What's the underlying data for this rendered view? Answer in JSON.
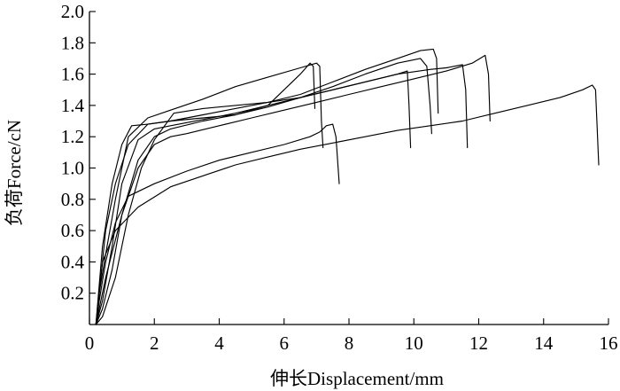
{
  "chart_data": {
    "type": "line",
    "title": "",
    "xlabel": "伸长Displacement/mm",
    "ylabel": "负荷Force/cN",
    "xlim": [
      0,
      16
    ],
    "ylim": [
      0,
      2.0
    ],
    "x_ticks": [
      0,
      2,
      4,
      6,
      8,
      10,
      12,
      14,
      16
    ],
    "y_ticks": [
      0.2,
      0.4,
      0.6,
      0.8,
      1.0,
      1.2,
      1.4,
      1.6,
      1.8,
      2.0
    ],
    "x_tick_labels": [
      "0",
      "2",
      "4",
      "6",
      "8",
      "10",
      "12",
      "14",
      "16"
    ],
    "y_tick_labels": [
      "0.2",
      "0.4",
      "0.6",
      "0.8",
      "1.0",
      "1.2",
      "1.4",
      "1.6",
      "1.8",
      "2.0"
    ],
    "grid": false,
    "legend": "none",
    "series": [
      {
        "x": [
          0.2,
          0.3,
          0.5,
          0.8,
          1.2,
          1.8,
          2.5,
          3.5,
          4.5,
          5.5,
          6.5,
          7.0,
          7.1,
          7.15,
          7.2
        ],
        "y": [
          0.0,
          0.2,
          0.45,
          0.8,
          1.2,
          1.32,
          1.37,
          1.44,
          1.52,
          1.58,
          1.64,
          1.67,
          1.65,
          1.3,
          1.13
        ]
      },
      {
        "x": [
          0.2,
          0.3,
          0.5,
          0.8,
          1.2,
          2.0,
          3.0,
          4.0,
          5.0,
          6.0,
          6.8,
          7.1,
          7.2,
          7.3,
          7.5,
          7.6,
          7.7
        ],
        "y": [
          0.0,
          0.15,
          0.4,
          0.65,
          0.82,
          0.9,
          0.98,
          1.05,
          1.1,
          1.15,
          1.2,
          1.23,
          1.25,
          1.27,
          1.28,
          1.2,
          0.9
        ]
      },
      {
        "x": [
          0.2,
          0.4,
          0.7,
          1.0,
          1.3,
          1.8,
          2.5,
          3.5,
          4.5,
          5.5,
          6.5,
          6.8,
          6.9,
          6.95
        ],
        "y": [
          0.0,
          0.5,
          0.9,
          1.15,
          1.27,
          1.28,
          1.3,
          1.32,
          1.34,
          1.4,
          1.6,
          1.67,
          1.65,
          1.38
        ]
      },
      {
        "x": [
          0.2,
          0.3,
          0.5,
          0.8,
          1.2,
          1.8,
          2.5,
          3.5,
          4.5,
          5.5,
          6.5,
          7.5,
          8.5,
          9.5,
          10.2,
          10.6,
          10.7,
          10.75
        ],
        "y": [
          0.0,
          0.2,
          0.6,
          0.9,
          1.15,
          1.28,
          1.3,
          1.34,
          1.38,
          1.42,
          1.47,
          1.55,
          1.63,
          1.7,
          1.75,
          1.76,
          1.7,
          1.35
        ]
      },
      {
        "x": [
          0.2,
          0.4,
          0.7,
          1.0,
          1.5,
          2.0,
          2.5,
          3.5,
          4.5,
          5.5,
          6.5,
          7.5,
          8.5,
          9.5,
          10.2,
          10.4,
          10.5,
          10.55
        ],
        "y": [
          0.0,
          0.1,
          0.35,
          0.7,
          1.05,
          1.2,
          1.25,
          1.3,
          1.34,
          1.39,
          1.45,
          1.52,
          1.6,
          1.67,
          1.7,
          1.65,
          1.4,
          1.22
        ]
      },
      {
        "x": [
          0.2,
          0.4,
          0.7,
          1.0,
          1.5,
          2.0,
          2.5,
          3.5,
          4.5,
          5.5,
          6.5,
          7.5,
          8.5,
          9.5,
          9.8,
          9.85,
          9.9
        ],
        "y": [
          0.0,
          0.15,
          0.5,
          0.9,
          1.18,
          1.25,
          1.27,
          1.31,
          1.35,
          1.4,
          1.45,
          1.5,
          1.55,
          1.6,
          1.62,
          1.4,
          1.13
        ]
      },
      {
        "x": [
          0.2,
          0.4,
          0.8,
          1.2,
          1.6,
          2.0,
          2.6,
          3.5,
          4.5,
          5.5,
          6.5,
          7.5,
          8.5,
          9.5,
          10.5,
          11.0,
          11.5,
          11.6,
          11.65
        ],
        "y": [
          0.0,
          0.05,
          0.3,
          0.7,
          1.0,
          1.18,
          1.35,
          1.38,
          1.4,
          1.42,
          1.45,
          1.5,
          1.55,
          1.6,
          1.63,
          1.64,
          1.66,
          1.5,
          1.13
        ]
      },
      {
        "x": [
          0.2,
          0.5,
          1.0,
          1.5,
          2.0,
          2.5,
          3.0,
          4.0,
          5.0,
          6.0,
          7.0,
          8.0,
          9.0,
          10.0,
          11.0,
          11.8,
          12.2,
          12.3,
          12.35
        ],
        "y": [
          0.0,
          0.3,
          0.7,
          1.0,
          1.15,
          1.2,
          1.22,
          1.27,
          1.32,
          1.37,
          1.42,
          1.47,
          1.52,
          1.57,
          1.62,
          1.67,
          1.72,
          1.6,
          1.3
        ]
      },
      {
        "x": [
          0.2,
          0.4,
          0.8,
          1.5,
          2.5,
          3.5,
          4.5,
          5.5,
          6.5,
          7.5,
          8.5,
          9.5,
          10.5,
          11.5,
          12.5,
          13.5,
          14.5,
          15.2,
          15.5,
          15.6,
          15.7
        ],
        "y": [
          0.0,
          0.4,
          0.6,
          0.75,
          0.88,
          0.95,
          1.02,
          1.07,
          1.12,
          1.16,
          1.2,
          1.24,
          1.27,
          1.3,
          1.35,
          1.4,
          1.45,
          1.5,
          1.53,
          1.5,
          1.02
        ]
      }
    ]
  }
}
